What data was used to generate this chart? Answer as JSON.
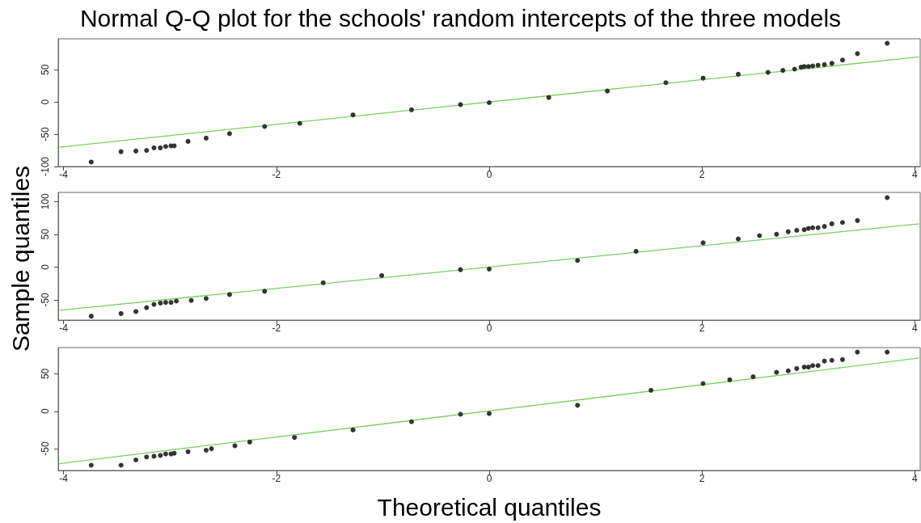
{
  "chart_data": [
    {
      "type": "scatter",
      "title": "Normal Q-Q plot for the schools' random intercepts of the three models",
      "xlim": [
        -4.05,
        4.05
      ],
      "xticks": [
        -4,
        -2,
        0,
        2,
        4
      ],
      "ylim": [
        -100,
        98
      ],
      "yticks": [
        -100,
        -50,
        0,
        50
      ],
      "grid": false,
      "series": [
        {
          "type": "scatter",
          "marker": "circle",
          "color": "#333333",
          "x": [
            -3.74,
            -3.46,
            -3.32,
            -3.22,
            -3.15,
            -3.09,
            -3.04,
            -2.99,
            -2.96,
            -2.83,
            -2.66,
            -2.44,
            -2.11,
            -1.78,
            -1.28,
            -0.73,
            -0.27,
            0,
            0.56,
            1.11,
            1.66,
            2.01,
            2.34,
            2.62,
            2.76,
            2.87,
            2.93,
            2.96,
            3.0,
            3.04,
            3.09,
            3.15,
            3.22,
            3.32,
            3.46,
            3.74
          ],
          "values": [
            -93,
            -77,
            -76,
            -75,
            -71,
            -71,
            -69,
            -68,
            -68,
            -61,
            -56,
            -49,
            -38,
            -33,
            -20,
            -12,
            -4,
            -1,
            7,
            17,
            30,
            37,
            43,
            46,
            49,
            51,
            54,
            55,
            55,
            56,
            57,
            58,
            60,
            65,
            75,
            91
          ]
        },
        {
          "type": "line",
          "color": "#77d05f",
          "x": [
            -4.04,
            4.04
          ],
          "values": [
            -70,
            70
          ]
        }
      ]
    },
    {
      "type": "scatter",
      "ylabel": "Sample quantiles",
      "xlim": [
        -4.05,
        4.05
      ],
      "xticks": [
        -4,
        -2,
        0,
        2,
        4
      ],
      "ylim": [
        -81,
        114
      ],
      "yticks": [
        -50,
        0,
        50,
        100
      ],
      "grid": false,
      "series": [
        {
          "type": "scatter",
          "marker": "circle",
          "color": "#333333",
          "x": [
            -3.74,
            -3.46,
            -3.32,
            -3.22,
            -3.15,
            -3.09,
            -3.04,
            -2.99,
            -2.94,
            -2.8,
            -2.66,
            -2.44,
            -2.11,
            -1.56,
            -1.01,
            -0.27,
            0,
            0.83,
            1.38,
            2.01,
            2.34,
            2.54,
            2.7,
            2.81,
            2.89,
            2.96,
            3.0,
            3.04,
            3.09,
            3.15,
            3.22,
            3.32,
            3.46,
            3.74
          ],
          "values": [
            -75,
            -71,
            -68,
            -62,
            -57,
            -55,
            -54,
            -54,
            -52,
            -51,
            -48,
            -42,
            -37,
            -24,
            -13,
            -4,
            -3,
            10,
            24,
            37,
            43,
            48,
            50,
            54,
            56,
            57,
            59,
            60,
            60,
            62,
            66,
            68,
            71,
            106
          ]
        },
        {
          "type": "line",
          "color": "#77d05f",
          "x": [
            -4.04,
            4.04
          ],
          "values": [
            -66,
            66
          ]
        }
      ]
    },
    {
      "type": "scatter",
      "xlabel": "Theoretical quantiles",
      "xlim": [
        -4.05,
        4.05
      ],
      "xticks": [
        -4,
        -2,
        0,
        2,
        4
      ],
      "ylim": [
        -79,
        85
      ],
      "yticks": [
        -50,
        0,
        50
      ],
      "grid": false,
      "series": [
        {
          "type": "scatter",
          "marker": "circle",
          "color": "#333333",
          "x": [
            -3.74,
            -3.46,
            -3.32,
            -3.22,
            -3.15,
            -3.09,
            -3.04,
            -2.99,
            -2.96,
            -2.83,
            -2.66,
            -2.61,
            -2.39,
            -2.25,
            -1.83,
            -1.28,
            -0.73,
            -0.27,
            0,
            0.83,
            1.52,
            2.01,
            2.26,
            2.48,
            2.7,
            2.81,
            2.89,
            2.96,
            3.0,
            3.04,
            3.09,
            3.15,
            3.22,
            3.32,
            3.46,
            3.74
          ],
          "values": [
            -72,
            -72,
            -65,
            -61,
            -60,
            -59,
            -57,
            -57,
            -56,
            -54,
            -52,
            -50,
            -46,
            -41,
            -35,
            -25,
            -14,
            -4,
            -3,
            8,
            28,
            37,
            42,
            46,
            52,
            54,
            57,
            59,
            59,
            61,
            61,
            67,
            68,
            69,
            79,
            79
          ]
        },
        {
          "type": "line",
          "color": "#77d05f",
          "x": [
            -4.04,
            4.04
          ],
          "values": [
            -70,
            71
          ]
        }
      ]
    }
  ]
}
